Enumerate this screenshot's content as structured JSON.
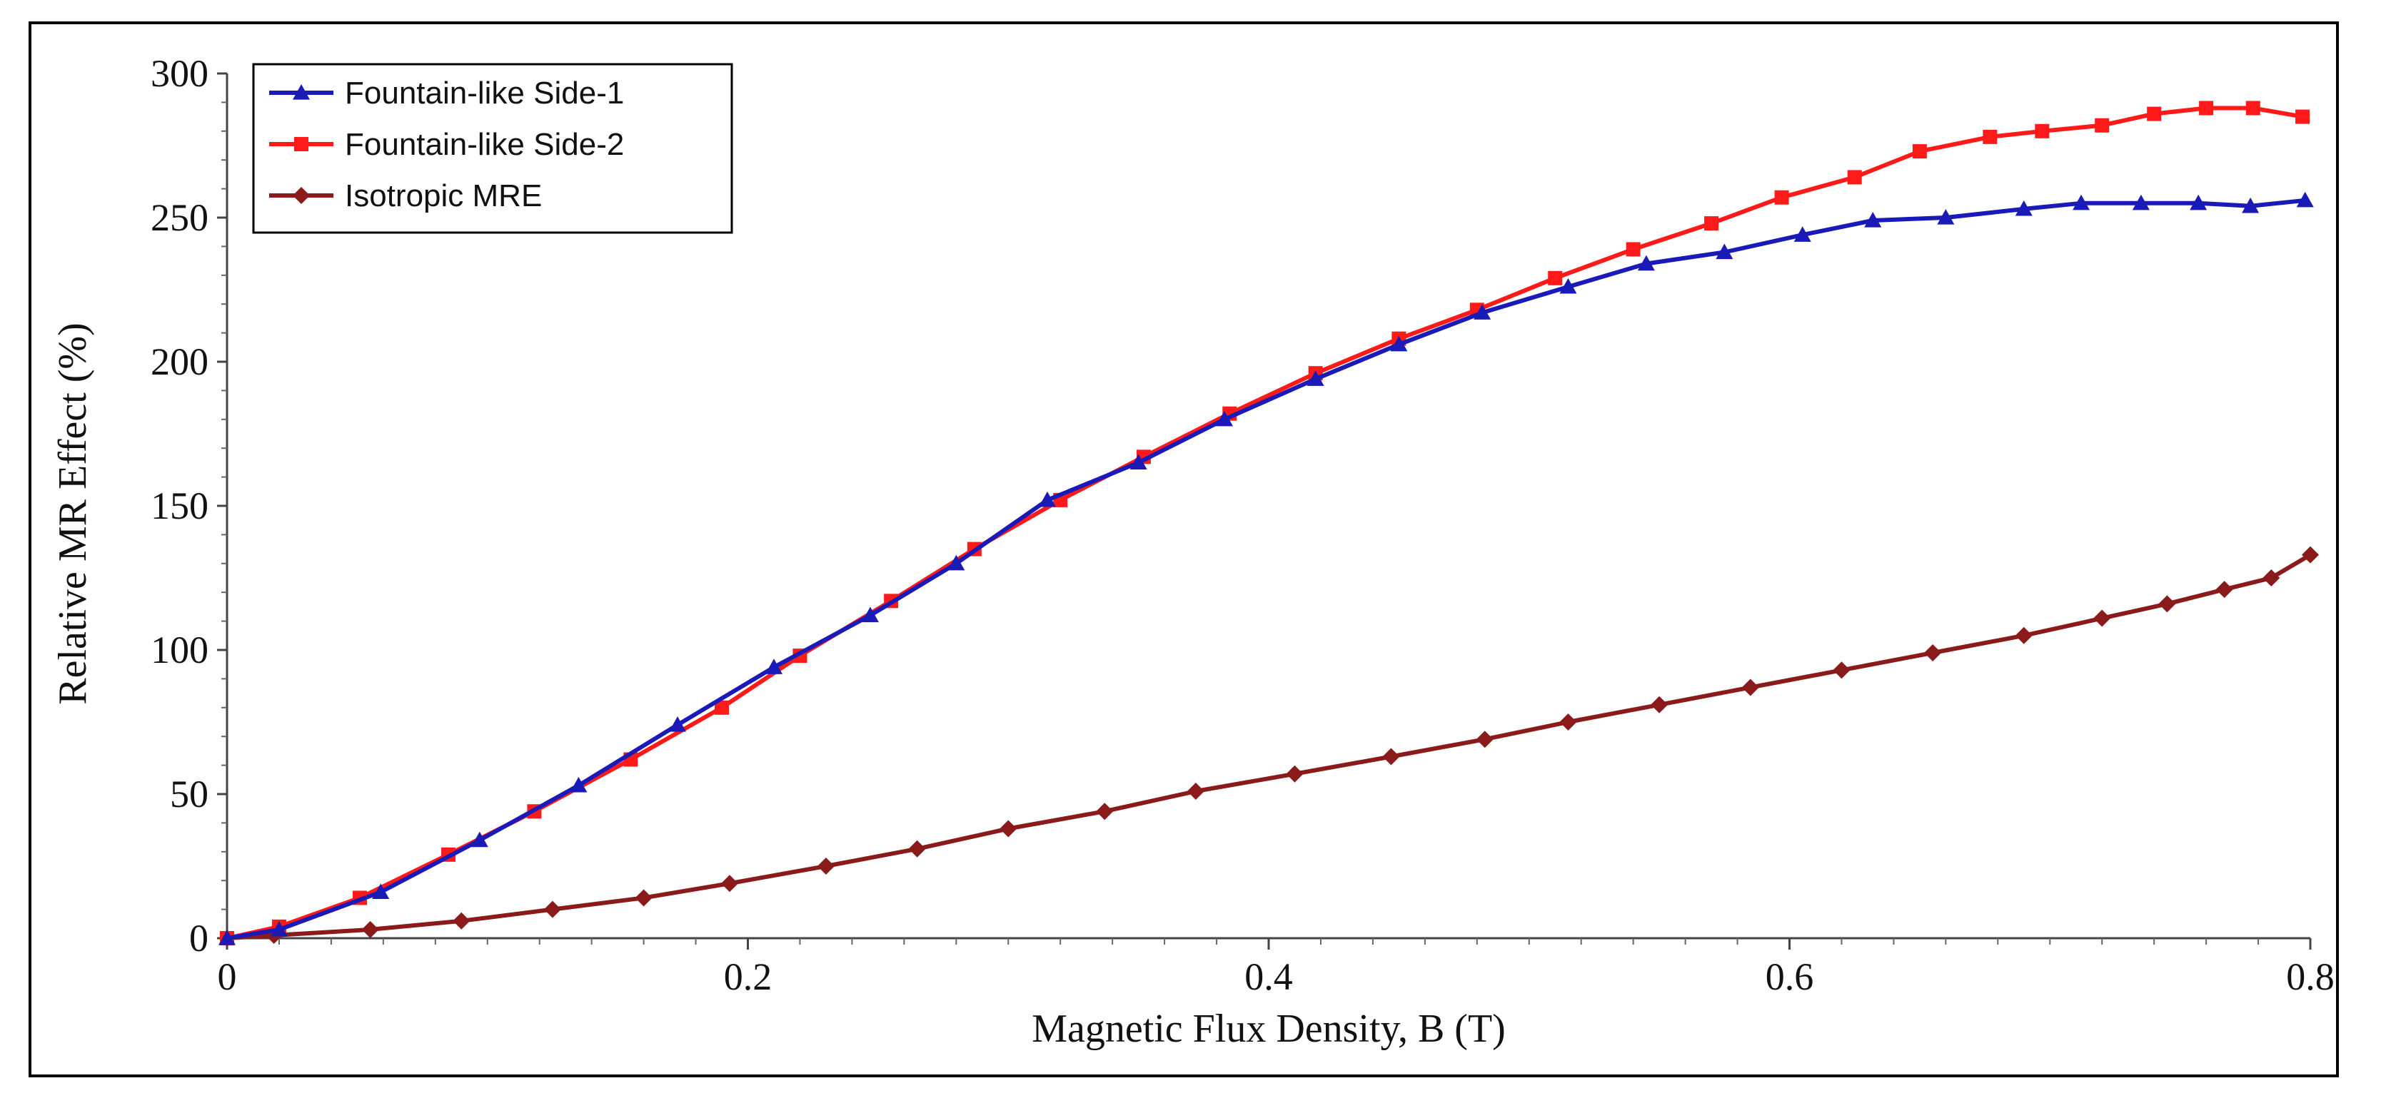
{
  "chart_data": {
    "type": "line",
    "title": "",
    "xlabel": "Magnetic Flux Density, B (T)",
    "ylabel": "Relative MR Effect (%)",
    "xlim": [
      0,
      0.8
    ],
    "ylim": [
      0,
      300
    ],
    "xticks": [
      "0",
      "0.2",
      "0.4",
      "0.6",
      "0.8"
    ],
    "yticks": [
      "0",
      "50",
      "100",
      "150",
      "200",
      "250",
      "300"
    ],
    "xtick_values": [
      0,
      0.2,
      0.4,
      0.6,
      0.8
    ],
    "ytick_values": [
      0,
      50,
      100,
      150,
      200,
      250,
      300
    ],
    "grid": false,
    "legend_position": "top-left",
    "series": [
      {
        "name": "Fountain-like Side-1",
        "color": "#1a1ab8",
        "marker": "triangle",
        "x": [
          0,
          0.02,
          0.059,
          0.097,
          0.135,
          0.173,
          0.21,
          0.247,
          0.28,
          0.315,
          0.35,
          0.383,
          0.418,
          0.45,
          0.482,
          0.515,
          0.545,
          0.575,
          0.605,
          0.632,
          0.66,
          0.69,
          0.712,
          0.735,
          0.757,
          0.777,
          0.798
        ],
        "y": [
          0,
          3,
          16,
          34,
          53,
          74,
          94,
          112,
          130,
          152,
          165,
          180,
          194,
          206,
          217,
          226,
          234,
          238,
          244,
          249,
          250,
          253,
          255,
          255,
          255,
          254,
          256
        ]
      },
      {
        "name": "Fountain-like Side-2",
        "color": "#ff1a1a",
        "marker": "square",
        "x": [
          0,
          0.02,
          0.051,
          0.085,
          0.118,
          0.155,
          0.19,
          0.22,
          0.255,
          0.287,
          0.32,
          0.352,
          0.385,
          0.418,
          0.45,
          0.48,
          0.51,
          0.54,
          0.57,
          0.597,
          0.625,
          0.65,
          0.677,
          0.697,
          0.72,
          0.74,
          0.76,
          0.778,
          0.797
        ],
        "y": [
          0,
          4,
          14,
          29,
          44,
          62,
          80,
          98,
          117,
          135,
          152,
          167,
          182,
          196,
          208,
          218,
          229,
          239,
          248,
          257,
          264,
          273,
          278,
          280,
          282,
          286,
          288,
          288,
          285
        ]
      },
      {
        "name": "Isotropic MRE",
        "color": "#8b1a1a",
        "marker": "diamond",
        "x": [
          0,
          0.018,
          0.055,
          0.09,
          0.125,
          0.16,
          0.193,
          0.23,
          0.265,
          0.3,
          0.337,
          0.372,
          0.41,
          0.447,
          0.483,
          0.515,
          0.55,
          0.585,
          0.62,
          0.655,
          0.69,
          0.72,
          0.745,
          0.767,
          0.785,
          0.8
        ],
        "y": [
          0,
          1,
          3,
          6,
          10,
          14,
          19,
          25,
          31,
          38,
          44,
          51,
          57,
          63,
          69,
          75,
          81,
          87,
          93,
          99,
          105,
          111,
          116,
          121,
          125,
          133
        ]
      }
    ]
  }
}
